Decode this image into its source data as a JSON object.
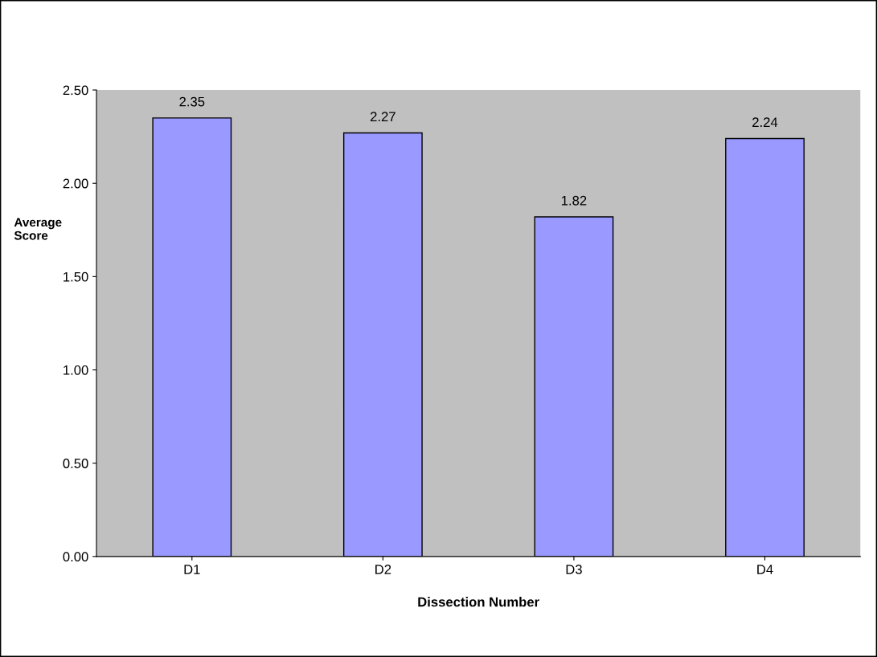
{
  "chart_data": {
    "type": "bar",
    "categories": [
      "D1",
      "D2",
      "D3",
      "D4"
    ],
    "values": [
      2.35,
      2.27,
      1.82,
      2.24
    ],
    "color": "#9999ff",
    "xlabel": "Dissection Number",
    "ylabel": "Average\nScore",
    "ylim": [
      0,
      2.5
    ],
    "yticks": [
      {
        "value": 0,
        "label": "0.00"
      },
      {
        "value": 0.5,
        "label": "0.50"
      },
      {
        "value": 1.0,
        "label": "1.00"
      },
      {
        "value": 1.5,
        "label": "1.50"
      },
      {
        "value": 2.0,
        "label": "2.00"
      },
      {
        "value": 2.5,
        "label": "2.50"
      }
    ],
    "data_labels": true,
    "grid": false,
    "legend": false
  }
}
